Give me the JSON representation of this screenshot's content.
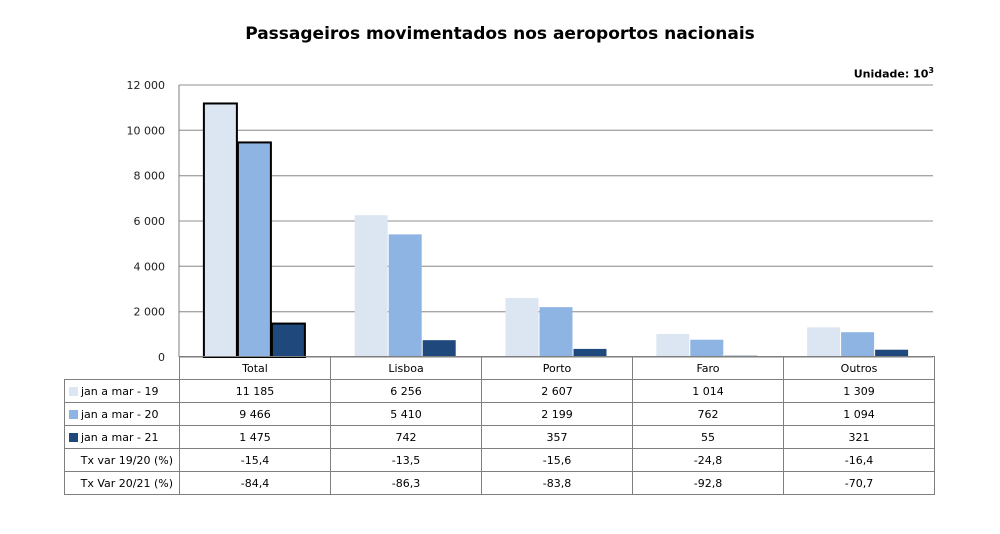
{
  "chart_data": {
    "type": "bar",
    "title": "Passageiros movimentados nos aeroportos nacionais",
    "unit_label": "Unidade: 10",
    "unit_exp": "3",
    "categories": [
      "Total",
      "Lisboa",
      "Porto",
      "Faro",
      "Outros"
    ],
    "series": [
      {
        "name": "jan a mar  - 19",
        "color": "#dce6f2",
        "values": [
          11185,
          6256,
          2607,
          1014,
          1309
        ]
      },
      {
        "name": "jan a mar  - 20",
        "color": "#8eb4e3",
        "values": [
          9466,
          5410,
          2199,
          762,
          1094
        ]
      },
      {
        "name": "jan a mar  - 21",
        "color": "#1f497d",
        "values": [
          1475,
          742,
          357,
          55,
          321
        ]
      }
    ],
    "ylim": [
      0,
      12000
    ],
    "yticks": [
      "0",
      "2 000",
      "4 000",
      "6 000",
      "8 000",
      "10 000",
      "12 000"
    ],
    "grid": true,
    "table": {
      "rows": [
        {
          "label": "jan a mar  - 19",
          "key": 0,
          "cells": [
            "11 185",
            "6 256",
            "2 607",
            "1 014",
            "1 309"
          ]
        },
        {
          "label": "jan a mar  - 20",
          "key": 1,
          "cells": [
            "9 466",
            "5 410",
            "2 199",
            "762",
            "1 094"
          ]
        },
        {
          "label": "jan a mar  - 21",
          "key": 2,
          "cells": [
            "1 475",
            "742",
            "357",
            "55",
            "321"
          ]
        },
        {
          "label": "Tx var 19/20 (%)",
          "key": null,
          "cells": [
            "-15,4",
            "-13,5",
            "-15,6",
            "-24,8",
            "-16,4"
          ]
        },
        {
          "label": "Tx Var 20/21 (%)",
          "key": null,
          "cells": [
            "-84,4",
            "-86,3",
            "-83,8",
            "-92,8",
            "-70,7"
          ]
        }
      ]
    }
  }
}
